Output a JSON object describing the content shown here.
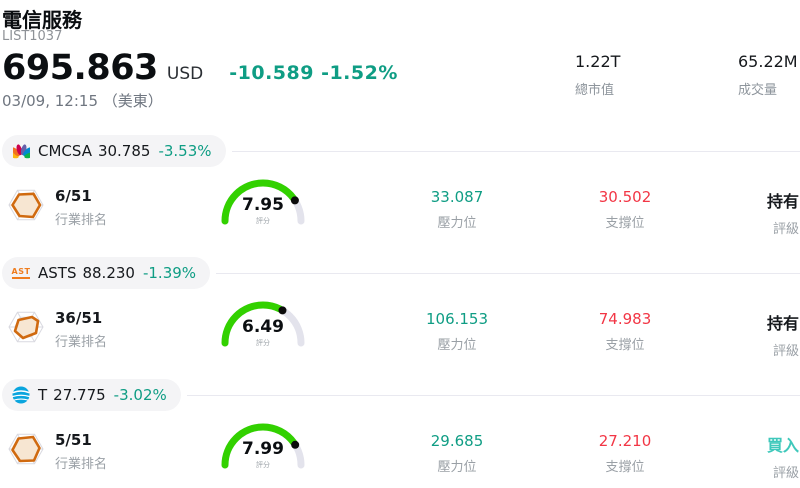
{
  "header": {
    "title": "電信服務",
    "list_id": "LIST1037",
    "price": "695.863",
    "currency": "USD",
    "change": "-10.589 -1.52%",
    "datetime": "03/09, 12:15 （美東）",
    "stats": [
      {
        "value": "1.22T",
        "label": "總市值"
      },
      {
        "value": "65.22M",
        "label": "成交量"
      }
    ]
  },
  "labels": {
    "rank": "行業排名",
    "score": "評分",
    "pressure": "壓力位",
    "support": "支撐位",
    "rating": "評級"
  },
  "colors": {
    "up_teal": "#0f9d84",
    "down_red": "#f23645",
    "gauge_green": "#32d100",
    "gauge_track": "#e3e3ec",
    "rating_hold": "#16191d",
    "rating_buy": "#3fc8bb",
    "logo_orange": "#ef7d1f"
  },
  "gauge": {
    "max_score": 10
  },
  "stocks": [
    {
      "symbol": "CMCSA",
      "price": "30.785",
      "change": "-3.53%",
      "rank": "6/51",
      "score": 7.95,
      "pressure": "33.087",
      "support": "30.502",
      "rating": "持有",
      "rating_color": "#16191d",
      "logo_icon": "nbc-peacock-icon"
    },
    {
      "symbol": "ASTS",
      "price": "88.230",
      "change": "-1.39%",
      "rank": "36/51",
      "score": 6.49,
      "pressure": "106.153",
      "support": "74.983",
      "rating": "持有",
      "rating_color": "#16191d",
      "logo_icon": "asts-logo-icon",
      "logo_text": "AST"
    },
    {
      "symbol": "T",
      "price": "27.775",
      "change": "-3.02%",
      "rank": "5/51",
      "score": 7.99,
      "pressure": "29.685",
      "support": "27.210",
      "rating": "買入",
      "rating_color": "#3fc8bb",
      "logo_icon": "att-globe-icon"
    }
  ]
}
